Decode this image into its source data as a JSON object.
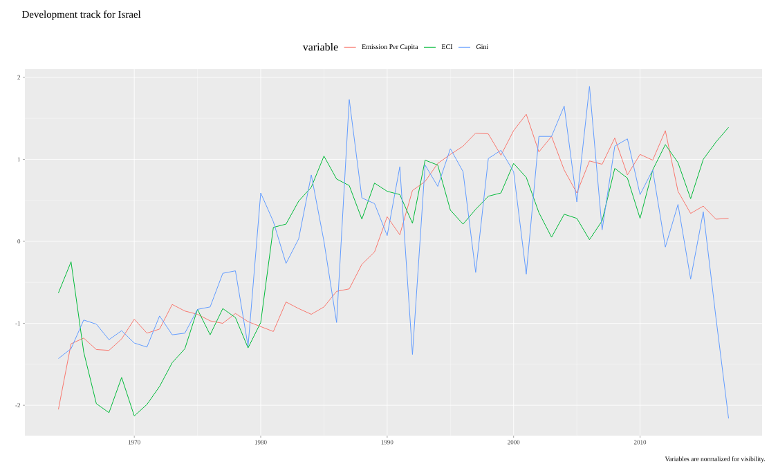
{
  "chart_data": {
    "type": "line",
    "title": "Development track for Israel",
    "legend_title": "variable",
    "annotations": [
      "Variables are normalized for visibility."
    ],
    "x": [
      1964,
      1965,
      1966,
      1967,
      1968,
      1969,
      1970,
      1971,
      1972,
      1973,
      1974,
      1975,
      1976,
      1977,
      1978,
      1979,
      1980,
      1981,
      1982,
      1983,
      1984,
      1985,
      1986,
      1987,
      1988,
      1989,
      1990,
      1991,
      1992,
      1993,
      1994,
      1995,
      1996,
      1997,
      1998,
      1999,
      2000,
      2001,
      2002,
      2003,
      2004,
      2005,
      2006,
      2007,
      2008,
      2009,
      2010,
      2011,
      2012,
      2013,
      2014,
      2015,
      2016,
      2017
    ],
    "series": [
      {
        "name": "Emission Per Capita",
        "color": "#f8766d",
        "values": [
          -2.05,
          -1.25,
          -1.18,
          -1.32,
          -1.33,
          -1.19,
          -0.95,
          -1.12,
          -1.07,
          -0.77,
          -0.85,
          -0.89,
          -0.97,
          -1.0,
          -0.88,
          -0.98,
          -1.04,
          -1.1,
          -0.74,
          -0.82,
          -0.89,
          -0.8,
          -0.61,
          -0.58,
          -0.28,
          -0.13,
          0.3,
          0.08,
          0.62,
          0.73,
          0.95,
          1.06,
          1.16,
          1.32,
          1.31,
          1.05,
          1.35,
          1.55,
          1.09,
          1.28,
          0.87,
          0.59,
          0.98,
          0.94,
          1.26,
          0.81,
          1.06,
          0.99,
          1.35,
          0.61,
          0.34,
          0.43,
          0.27,
          0.28
        ]
      },
      {
        "name": "ECI",
        "color": "#00ba38",
        "values": [
          -0.63,
          -0.25,
          -1.35,
          -1.98,
          -2.09,
          -1.66,
          -2.13,
          -1.99,
          -1.77,
          -1.48,
          -1.31,
          -0.83,
          -1.14,
          -0.82,
          -0.93,
          -1.3,
          -0.99,
          0.17,
          0.21,
          0.49,
          0.66,
          1.04,
          0.76,
          0.68,
          0.27,
          0.71,
          0.61,
          0.57,
          0.22,
          0.99,
          0.93,
          0.38,
          0.21,
          0.39,
          0.55,
          0.59,
          0.95,
          0.78,
          0.35,
          0.05,
          0.33,
          0.28,
          0.02,
          0.25,
          0.89,
          0.77,
          0.28,
          0.87,
          1.18,
          0.96,
          0.52,
          1.0,
          1.21,
          1.39
        ]
      },
      {
        "name": "Gini",
        "color": "#619cff",
        "values": [
          -1.43,
          -1.31,
          -0.96,
          -1.01,
          -1.2,
          -1.09,
          -1.24,
          -1.29,
          -0.91,
          -1.14,
          -1.12,
          -0.83,
          -0.8,
          -0.39,
          -0.36,
          -1.28,
          0.59,
          0.24,
          -0.27,
          0.03,
          0.81,
          0.0,
          -0.99,
          1.73,
          0.53,
          0.46,
          0.07,
          0.91,
          -1.38,
          0.93,
          0.67,
          1.13,
          0.85,
          -0.38,
          1.01,
          1.11,
          0.85,
          -0.4,
          1.28,
          1.28,
          1.65,
          0.48,
          1.89,
          0.14,
          1.16,
          1.25,
          0.57,
          0.87,
          -0.07,
          0.45,
          -0.46,
          0.36,
          -0.93,
          -2.16
        ]
      }
    ],
    "xlim": [
      1961.35,
      2019.65
    ],
    "ylim": [
      -2.37,
      2.1
    ],
    "xticks": [
      1970,
      1980,
      1990,
      2000,
      2010
    ],
    "yticks": [
      -2,
      -1,
      0,
      1,
      2
    ],
    "grid": true,
    "legend": "top",
    "line_style": "solid",
    "marker": "none"
  }
}
